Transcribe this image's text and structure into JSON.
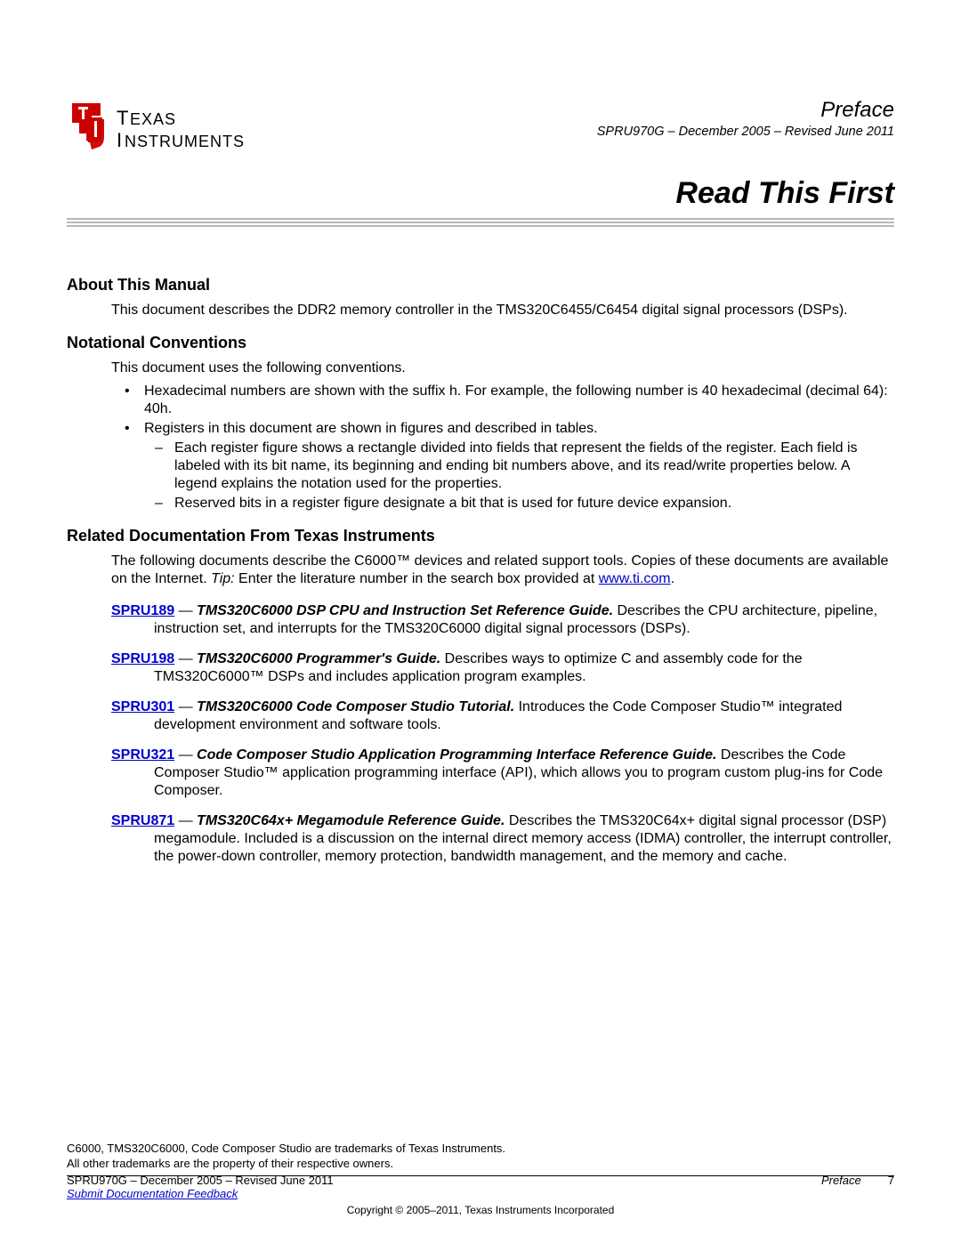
{
  "header": {
    "preface": "Preface",
    "docid": "SPRU970G – December 2005 – Revised June 2011",
    "title": "Read This First"
  },
  "logo": {
    "line1": "Texas",
    "line2": "Instruments",
    "red": "#cc0000",
    "black": "#000000"
  },
  "sections": {
    "about": {
      "heading": "About This Manual",
      "body": "This document describes the DDR2 memory controller in the TMS320C6455/C6454 digital signal processors (DSPs)."
    },
    "notation": {
      "heading": "Notational Conventions",
      "intro": "This document uses the following conventions.",
      "b1": "Hexadecimal numbers are shown with the suffix h. For example, the following number is 40 hexadecimal (decimal 64): 40h.",
      "b2": "Registers in this document are shown in figures and described in tables.",
      "b2a": "Each register figure shows a rectangle divided into fields that represent the fields of the register. Each field is labeled with its bit name, its beginning and ending bit numbers above, and its read/write properties below. A legend explains the notation used for the properties.",
      "b2b": "Reserved bits in a register figure designate a bit that is used for future device expansion."
    },
    "related": {
      "heading": "Related Documentation From Texas Instruments",
      "intro_pre": "The following documents describe the C6000™ devices and related support tools. Copies of these documents are available on the Internet. ",
      "tip_label": "Tip:",
      "intro_post": " Enter the literature number in the search box provided at ",
      "url": "www.ti.com",
      "dash": " — ",
      "docs": [
        {
          "link": "SPRU189",
          "title": "TMS320C6000 DSP CPU and Instruction Set Reference Guide.",
          "desc": " Describes the CPU architecture, pipeline, instruction set, and interrupts for the TMS320C6000 digital signal processors (DSPs)."
        },
        {
          "link": "SPRU198",
          "title": "TMS320C6000 Programmer's Guide.",
          "desc": " Describes ways to optimize C and assembly code for the TMS320C6000™ DSPs and includes application program examples."
        },
        {
          "link": "SPRU301",
          "title": "TMS320C6000 Code Composer Studio Tutorial.",
          "desc": " Introduces the Code Composer Studio™ integrated development environment and software tools."
        },
        {
          "link": "SPRU321",
          "title": "Code Composer Studio Application Programming Interface Reference Guide.",
          "desc": " Describes the Code Composer Studio™ application programming interface (API), which allows you to program custom plug-ins for Code Composer."
        },
        {
          "link": "SPRU871",
          "title": "TMS320C64x+ Megamodule Reference Guide.",
          "desc": " Describes the TMS320C64x+ digital signal processor (DSP) megamodule. Included is a discussion on the internal direct memory access (IDMA) controller, the interrupt controller, the power-down controller, memory protection, bandwidth management, and the memory and cache."
        }
      ]
    }
  },
  "footnotes": {
    "l1": "C6000, TMS320C6000, Code Composer Studio are trademarks of Texas Instruments.",
    "l2": "All other trademarks are the property of their respective owners."
  },
  "footer": {
    "left": "SPRU970G – December 2005 – Revised June 2011",
    "right": "Preface",
    "page": "7",
    "feedback": "Submit Documentation Feedback",
    "copyright": "Copyright © 2005–2011, Texas Instruments Incorporated"
  }
}
